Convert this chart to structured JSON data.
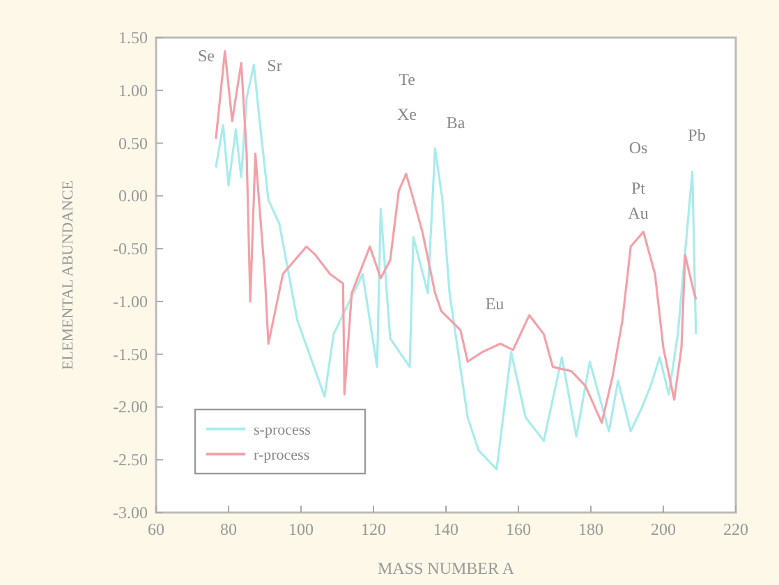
{
  "chart_data": {
    "type": "line",
    "xlabel": "MASS NUMBER A",
    "ylabel": "ELEMENTAL ABUNDANCE",
    "xlim": [
      60,
      220
    ],
    "xticks": [
      60,
      80,
      100,
      120,
      140,
      160,
      180,
      200,
      220
    ],
    "ylim": [
      -3,
      1.5
    ],
    "yticks": [
      {
        "value": 1.5,
        "label": "1.50"
      },
      {
        "value": 1,
        "label": "1.00"
      },
      {
        "value": 0.5,
        "label": "0.50"
      },
      {
        "value": 0,
        "label": "0.00"
      },
      {
        "value": -0.5,
        "label": "-0.50"
      },
      {
        "value": -1,
        "label": "-1.00"
      },
      {
        "value": -1.5,
        "label": "-1.50"
      },
      {
        "value": -2,
        "label": "-2.00"
      },
      {
        "value": -2.5,
        "label": "-2.50"
      },
      {
        "value": -3,
        "label": "-3.00"
      }
    ],
    "grid": false,
    "legend": "bottom left",
    "line_style": "solid",
    "marker": "none",
    "series": [
      {
        "name": "s-process",
        "color": "#a8ecec",
        "x": [
          76.5,
          78.5,
          80,
          82,
          83.5,
          85,
          87,
          88.7,
          91,
          94,
          99,
          106.5,
          109,
          117,
          121,
          122,
          124.6,
          130,
          131,
          135,
          137,
          139,
          141,
          146,
          149,
          154,
          158,
          162,
          167,
          172,
          176,
          179.7,
          185,
          187.5,
          191,
          194,
          196.5,
          199,
          201.5,
          204,
          208,
          209
        ],
        "values": [
          0.27,
          0.67,
          0.1,
          0.63,
          0.18,
          0.93,
          1.24,
          0.67,
          -0.04,
          -0.26,
          -1.18,
          -1.9,
          -1.31,
          -0.74,
          -1.62,
          -0.12,
          -1.35,
          -1.62,
          -0.39,
          -0.92,
          0.45,
          -0.03,
          -0.92,
          -2.1,
          -2.41,
          -2.59,
          -1.48,
          -2.1,
          -2.32,
          -1.53,
          -2.28,
          -1.57,
          -2.23,
          -1.75,
          -2.23,
          -2.01,
          -1.8,
          -1.53,
          -1.88,
          -1.31,
          0.23,
          -1.31
        ]
      },
      {
        "name": "r-process",
        "color": "#f4a0a8",
        "x": [
          76.5,
          79,
          81,
          83.5,
          85,
          86,
          87.4,
          90,
          91,
          95,
          101.5,
          104,
          108,
          111.6,
          112,
          114,
          119,
          122,
          124.6,
          127,
          129,
          131,
          133.5,
          137,
          138.7,
          144,
          146,
          150,
          155,
          158.5,
          163,
          167,
          169.5,
          174.6,
          178.5,
          183,
          186,
          188.7,
          191,
          194.5,
          197.7,
          200,
          203,
          205,
          206,
          208.5,
          209
        ],
        "values": [
          0.54,
          1.37,
          0.71,
          1.26,
          0.4,
          -1.0,
          0.4,
          -0.74,
          -1.4,
          -0.74,
          -0.48,
          -0.56,
          -0.74,
          -0.83,
          -1.88,
          -0.92,
          -0.48,
          -0.78,
          -0.61,
          0.05,
          0.21,
          -0.03,
          -0.34,
          -0.92,
          -1.09,
          -1.27,
          -1.57,
          -1.48,
          -1.4,
          -1.46,
          -1.13,
          -1.31,
          -1.62,
          -1.66,
          -1.8,
          -2.15,
          -1.71,
          -1.18,
          -0.48,
          -0.34,
          -0.74,
          -1.44,
          -1.93,
          -1.44,
          -0.56,
          -0.92,
          -0.98
        ]
      }
    ],
    "annotations": [
      "Se",
      "Sr",
      "Te",
      "Xe",
      "Ba",
      "Eu",
      "Os",
      "Pt",
      "Au",
      "Pb"
    ]
  }
}
